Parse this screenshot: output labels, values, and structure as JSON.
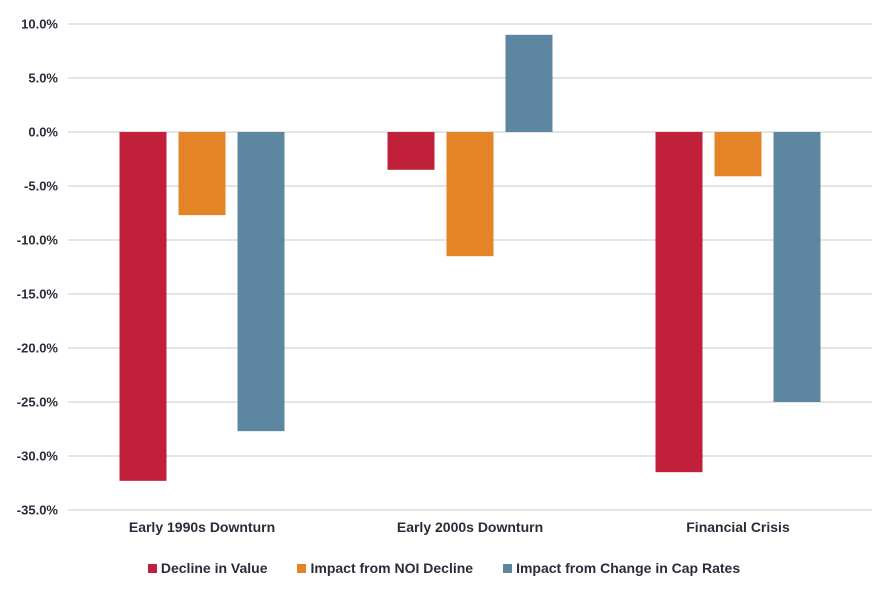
{
  "chart_data": {
    "type": "bar",
    "categories": [
      "Early 1990s Downturn",
      "Early 2000s Downturn",
      "Financial Crisis"
    ],
    "series": [
      {
        "name": "Decline in Value",
        "color": "#c0203a",
        "values": [
          -32.3,
          -3.5,
          -31.5
        ]
      },
      {
        "name": "Impact from NOI Decline",
        "color": "#e58426",
        "values": [
          -7.7,
          -11.5,
          -4.1
        ]
      },
      {
        "name": "Impact from Change in Cap Rates",
        "color": "#5d87a1",
        "values": [
          -27.7,
          9.0,
          -25.0
        ]
      }
    ],
    "ylim": [
      -35,
      10
    ],
    "yticks": [
      10,
      5,
      0,
      -5,
      -10,
      -15,
      -20,
      -25,
      -30,
      -35
    ],
    "ytick_labels": [
      "10.0%",
      "5.0%",
      "0.0%",
      "-5.0%",
      "-10.0%",
      "-15.0%",
      "-20.0%",
      "-25.0%",
      "-30.0%",
      "-35.0%"
    ],
    "grid": true,
    "legend_position": "bottom"
  }
}
